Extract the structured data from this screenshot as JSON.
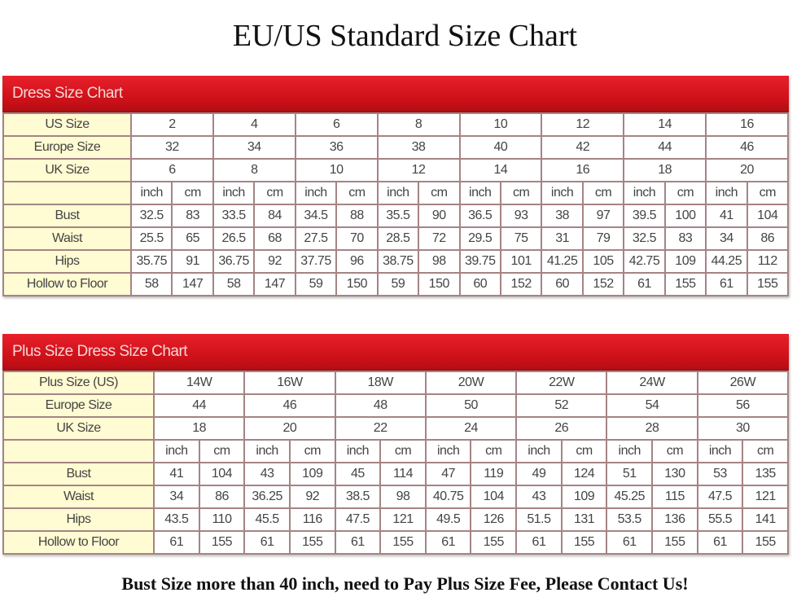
{
  "title": "EU/US Standard Size Chart",
  "footer": "Bust Size more than 40 inch, need to Pay Plus Size Fee, Please Contact Us!",
  "colors": {
    "header_red": "#d8141e",
    "label_yellow": "#fffbd2",
    "border": "#a58484"
  },
  "tables": [
    {
      "heading": "Dress Size Chart",
      "size_rows": [
        {
          "label": "US Size",
          "values": [
            "2",
            "4",
            "6",
            "8",
            "10",
            "12",
            "14",
            "16"
          ]
        },
        {
          "label": "Europe Size",
          "values": [
            "32",
            "34",
            "36",
            "38",
            "40",
            "42",
            "44",
            "46"
          ]
        },
        {
          "label": "UK Size",
          "values": [
            "6",
            "8",
            "10",
            "12",
            "14",
            "16",
            "18",
            "20"
          ]
        }
      ],
      "unit_labels": [
        "inch",
        "cm"
      ],
      "measure_rows": [
        {
          "label": "Bust",
          "values": [
            "32.5",
            "83",
            "33.5",
            "84",
            "34.5",
            "88",
            "35.5",
            "90",
            "36.5",
            "93",
            "38",
            "97",
            "39.5",
            "100",
            "41",
            "104"
          ]
        },
        {
          "label": "Waist",
          "values": [
            "25.5",
            "65",
            "26.5",
            "68",
            "27.5",
            "70",
            "28.5",
            "72",
            "29.5",
            "75",
            "31",
            "79",
            "32.5",
            "83",
            "34",
            "86"
          ]
        },
        {
          "label": "Hips",
          "values": [
            "35.75",
            "91",
            "36.75",
            "92",
            "37.75",
            "96",
            "38.75",
            "98",
            "39.75",
            "101",
            "41.25",
            "105",
            "42.75",
            "109",
            "44.25",
            "112"
          ]
        },
        {
          "label": "Hollow to Floor",
          "values": [
            "58",
            "147",
            "58",
            "147",
            "59",
            "150",
            "59",
            "150",
            "60",
            "152",
            "60",
            "152",
            "61",
            "155",
            "61",
            "155"
          ]
        }
      ]
    },
    {
      "heading": "Plus Size Dress Size Chart",
      "size_rows": [
        {
          "label": "Plus Size (US)",
          "values": [
            "14W",
            "16W",
            "18W",
            "20W",
            "22W",
            "24W",
            "26W"
          ]
        },
        {
          "label": "Europe Size",
          "values": [
            "44",
            "46",
            "48",
            "50",
            "52",
            "54",
            "56"
          ]
        },
        {
          "label": "UK Size",
          "values": [
            "18",
            "20",
            "22",
            "24",
            "26",
            "28",
            "30"
          ]
        }
      ],
      "unit_labels": [
        "inch",
        "cm"
      ],
      "measure_rows": [
        {
          "label": "Bust",
          "values": [
            "41",
            "104",
            "43",
            "109",
            "45",
            "114",
            "47",
            "119",
            "49",
            "124",
            "51",
            "130",
            "53",
            "135"
          ]
        },
        {
          "label": "Waist",
          "values": [
            "34",
            "86",
            "36.25",
            "92",
            "38.5",
            "98",
            "40.75",
            "104",
            "43",
            "109",
            "45.25",
            "115",
            "47.5",
            "121"
          ]
        },
        {
          "label": "Hips",
          "values": [
            "43.5",
            "110",
            "45.5",
            "116",
            "47.5",
            "121",
            "49.5",
            "126",
            "51.5",
            "131",
            "53.5",
            "136",
            "55.5",
            "141"
          ]
        },
        {
          "label": "Hollow to Floor",
          "values": [
            "61",
            "155",
            "61",
            "155",
            "61",
            "155",
            "61",
            "155",
            "61",
            "155",
            "61",
            "155",
            "61",
            "155"
          ]
        }
      ]
    }
  ]
}
